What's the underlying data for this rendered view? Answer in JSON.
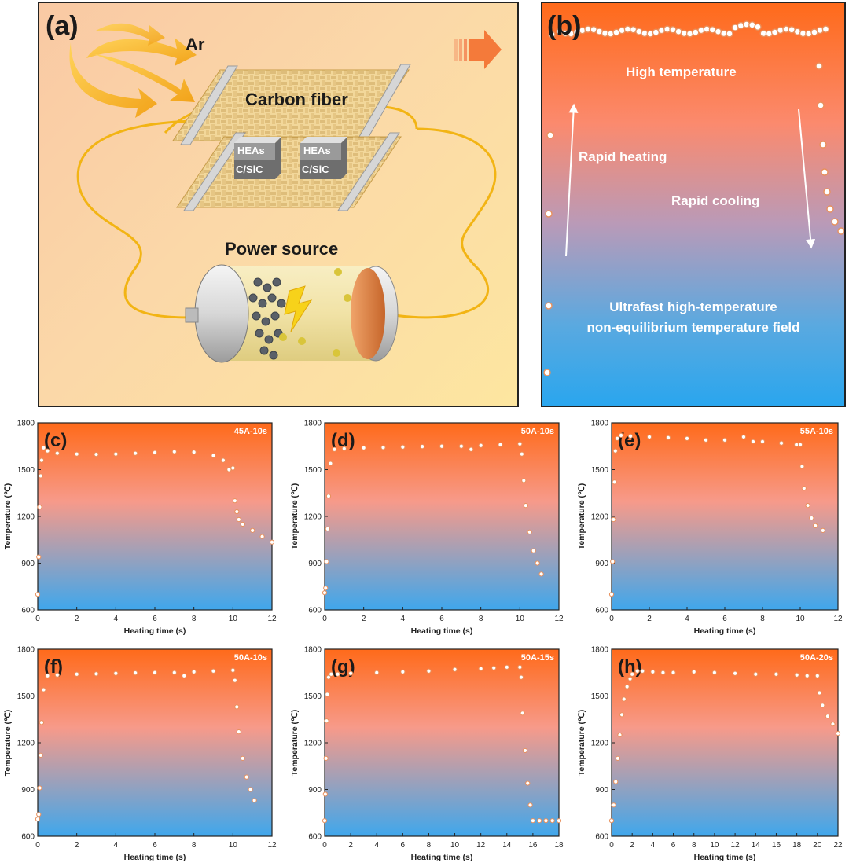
{
  "panel_a": {
    "label": "(a)",
    "gas": "Ar",
    "carbon_fiber": "Carbon fiber",
    "sample_top": "HEAs",
    "sample_bottom": "C/SiC",
    "power_source": "Power source"
  },
  "panel_b": {
    "label": "(b)",
    "high_temperature": "High temperature",
    "rapid_heating": "Rapid heating",
    "rapid_cooling": "Rapid cooling",
    "field_line1": "Ultrafast high-temperature",
    "field_line2": "non-equilibrium temperature field"
  },
  "colors": {
    "gradient_top": "#ff6a1a",
    "gradient_mid": "#f79a8a",
    "gradient_bottom": "#3fa7ec",
    "marker_fill": "#ffffff",
    "marker_stroke": "#e8905c"
  },
  "chart_data": [
    {
      "id": "c",
      "type": "scatter",
      "panel_label": "(c)",
      "condition": "45A-10s",
      "xlabel": "Heating time (s)",
      "ylabel": "Temperature (℃)",
      "xlim": [
        0,
        12
      ],
      "ylim": [
        600,
        1800
      ],
      "xticks": [
        0,
        2,
        4,
        6,
        8,
        10,
        12
      ],
      "yticks": [
        600,
        900,
        1200,
        1500,
        1800
      ],
      "series": [
        {
          "x": [
            0,
            0.05,
            0.1,
            0.15,
            0.2,
            0.3,
            0.5,
            1,
            2,
            3,
            4,
            5,
            6,
            7,
            8,
            9,
            9.5,
            9.8,
            10,
            10.1,
            10.2,
            10.3,
            10.5,
            11,
            11.5,
            12
          ],
          "y": [
            700,
            940,
            1260,
            1460,
            1560,
            1640,
            1620,
            1605,
            1600,
            1598,
            1600,
            1605,
            1610,
            1615,
            1612,
            1590,
            1560,
            1500,
            1510,
            1300,
            1230,
            1180,
            1150,
            1110,
            1070,
            1035
          ]
        }
      ]
    },
    {
      "id": "d",
      "type": "scatter",
      "panel_label": "(d)",
      "condition": "50A-10s",
      "xlabel": "Heating time (s)",
      "ylabel": "Temperature (℃)",
      "xlim": [
        0,
        12
      ],
      "ylim": [
        600,
        1800
      ],
      "xticks": [
        0,
        2,
        4,
        6,
        8,
        10,
        12
      ],
      "yticks": [
        600,
        900,
        1200,
        1500,
        1800
      ],
      "series": [
        {
          "x": [
            0,
            0.05,
            0.1,
            0.15,
            0.2,
            0.3,
            0.5,
            1,
            2,
            3,
            4,
            5,
            6,
            7,
            7.5,
            8,
            9,
            10,
            10.1,
            10.2,
            10.3,
            10.5,
            10.7,
            10.9,
            11.1
          ],
          "y": [
            710,
            740,
            910,
            1120,
            1330,
            1540,
            1630,
            1635,
            1640,
            1642,
            1645,
            1648,
            1650,
            1650,
            1630,
            1655,
            1660,
            1665,
            1600,
            1430,
            1270,
            1100,
            980,
            900,
            830
          ]
        }
      ]
    },
    {
      "id": "e",
      "type": "scatter",
      "panel_label": "(e)",
      "condition": "55A-10s",
      "xlabel": "Heating time (s)",
      "ylabel": "Temperature (℃)",
      "xlim": [
        0,
        12
      ],
      "ylim": [
        600,
        1800
      ],
      "xticks": [
        0,
        2,
        4,
        6,
        8,
        10,
        12
      ],
      "yticks": [
        600,
        900,
        1200,
        1500,
        1800
      ],
      "series": [
        {
          "x": [
            0,
            0.05,
            0.1,
            0.15,
            0.2,
            0.3,
            0.5,
            1,
            2,
            3,
            4,
            5,
            6,
            7,
            7.5,
            8,
            9,
            9.8,
            10,
            10.1,
            10.2,
            10.4,
            10.6,
            10.8,
            11.2
          ],
          "y": [
            700,
            910,
            1180,
            1420,
            1620,
            1700,
            1720,
            1715,
            1710,
            1705,
            1700,
            1690,
            1690,
            1710,
            1680,
            1680,
            1670,
            1660,
            1660,
            1520,
            1380,
            1270,
            1190,
            1140,
            1110
          ]
        }
      ]
    },
    {
      "id": "f",
      "type": "scatter",
      "panel_label": "(f)",
      "condition": "50A-10s",
      "xlabel": "Heating time (s)",
      "ylabel": "Temperature (℃)",
      "xlim": [
        0,
        12
      ],
      "ylim": [
        600,
        1800
      ],
      "xticks": [
        0,
        2,
        4,
        6,
        8,
        10,
        12
      ],
      "yticks": [
        600,
        900,
        1200,
        1500,
        1800
      ],
      "series": [
        {
          "x": [
            0,
            0.05,
            0.1,
            0.15,
            0.2,
            0.3,
            0.5,
            1,
            2,
            3,
            4,
            5,
            6,
            7,
            7.5,
            8,
            9,
            10,
            10.1,
            10.2,
            10.3,
            10.5,
            10.7,
            10.9,
            11.1
          ],
          "y": [
            710,
            740,
            910,
            1120,
            1330,
            1540,
            1630,
            1635,
            1640,
            1642,
            1645,
            1648,
            1650,
            1650,
            1630,
            1655,
            1660,
            1665,
            1600,
            1430,
            1270,
            1100,
            980,
            900,
            830
          ]
        }
      ]
    },
    {
      "id": "g",
      "type": "scatter",
      "panel_label": "(g)",
      "condition": "50A-15s",
      "xlabel": "Heating time (s)",
      "ylabel": "Temperature (℃)",
      "xlim": [
        0,
        18
      ],
      "ylim": [
        600,
        1800
      ],
      "xticks": [
        0,
        2,
        4,
        6,
        8,
        10,
        12,
        14,
        16,
        18
      ],
      "yticks": [
        600,
        900,
        1200,
        1500,
        1800
      ],
      "series": [
        {
          "x": [
            0,
            0.05,
            0.1,
            0.15,
            0.2,
            0.3,
            0.5,
            1,
            2,
            4,
            6,
            8,
            10,
            12,
            13,
            14,
            15,
            15.1,
            15.2,
            15.4,
            15.6,
            15.8,
            16,
            16.5,
            17,
            17.5,
            18
          ],
          "y": [
            700,
            870,
            1100,
            1340,
            1510,
            1620,
            1640,
            1640,
            1645,
            1650,
            1655,
            1660,
            1670,
            1675,
            1680,
            1685,
            1685,
            1620,
            1390,
            1150,
            940,
            800,
            700,
            700,
            700,
            700,
            700
          ]
        }
      ]
    },
    {
      "id": "h",
      "type": "scatter",
      "panel_label": "(h)",
      "condition": "50A-20s",
      "xlabel": "Heating time (s)",
      "ylabel": "Temperature (℃)",
      "xlim": [
        0,
        22
      ],
      "ylim": [
        600,
        1800
      ],
      "xticks": [
        0,
        2,
        4,
        6,
        8,
        10,
        12,
        14,
        16,
        18,
        20,
        22
      ],
      "yticks": [
        600,
        900,
        1200,
        1500,
        1800
      ],
      "series": [
        {
          "x": [
            0,
            0.2,
            0.4,
            0.6,
            0.8,
            1,
            1.2,
            1.5,
            1.8,
            2,
            2.5,
            3,
            4,
            5,
            6,
            8,
            10,
            12,
            14,
            16,
            18,
            19,
            20,
            20.2,
            20.5,
            21,
            21.5,
            22
          ],
          "y": [
            700,
            800,
            950,
            1100,
            1250,
            1380,
            1480,
            1560,
            1610,
            1640,
            1660,
            1660,
            1655,
            1650,
            1650,
            1655,
            1650,
            1645,
            1640,
            1640,
            1635,
            1630,
            1630,
            1520,
            1440,
            1370,
            1320,
            1260
          ]
        }
      ]
    }
  ]
}
